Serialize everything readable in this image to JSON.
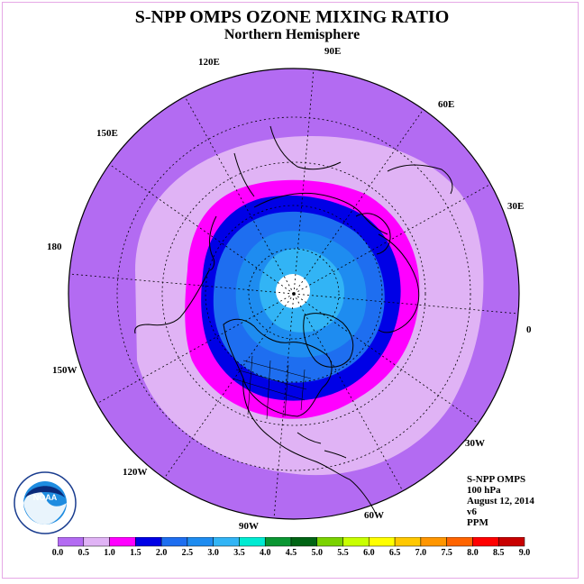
{
  "title": "S-NPP OMPS OZONE MIXING RATIO",
  "subtitle": "Northern Hemisphere",
  "longitude_labels": [
    "90E",
    "60E",
    "30E",
    "0",
    "30W",
    "60W",
    "90W",
    "120W",
    "150W",
    "180",
    "150E",
    "120E"
  ],
  "info": {
    "instrument": "S-NPP OMPS",
    "level": "100 hPa",
    "date": "August 12, 2014",
    "version": "v6",
    "units": "PPM"
  },
  "logo_text": "NOAA",
  "colorbar": {
    "ticks": [
      "0.0",
      "0.5",
      "1.0",
      "1.5",
      "2.0",
      "2.5",
      "3.0",
      "3.5",
      "4.0",
      "4.5",
      "5.0",
      "5.5",
      "6.0",
      "6.5",
      "7.0",
      "7.5",
      "8.0",
      "8.5",
      "9.0"
    ],
    "colors": [
      "#b36bf2",
      "#e0b3f5",
      "#ff00ff",
      "#0000e6",
      "#1e6ef0",
      "#1e8cf0",
      "#32b4f5",
      "#00ebd2",
      "#0a9632",
      "#006414",
      "#7ad200",
      "#c8ff00",
      "#ffff00",
      "#ffc800",
      "#ff9600",
      "#ff6400",
      "#ff0000",
      "#c80000",
      "#8c5a3c"
    ]
  },
  "field_levels": [
    {
      "range": "0.0-0.5",
      "color": "#b36bf2"
    },
    {
      "range": "0.5-1.0",
      "color": "#e0b3f5"
    },
    {
      "range": "1.0-1.5",
      "color": "#ff00ff"
    },
    {
      "range": "1.5-2.0",
      "color": "#0000e6"
    },
    {
      "range": "2.0-2.5",
      "color": "#1e6ef0"
    },
    {
      "range": "2.5-3.0",
      "color": "#1e8cf0"
    },
    {
      "range": "3.0-3.5",
      "color": "#32b4f5"
    }
  ]
}
